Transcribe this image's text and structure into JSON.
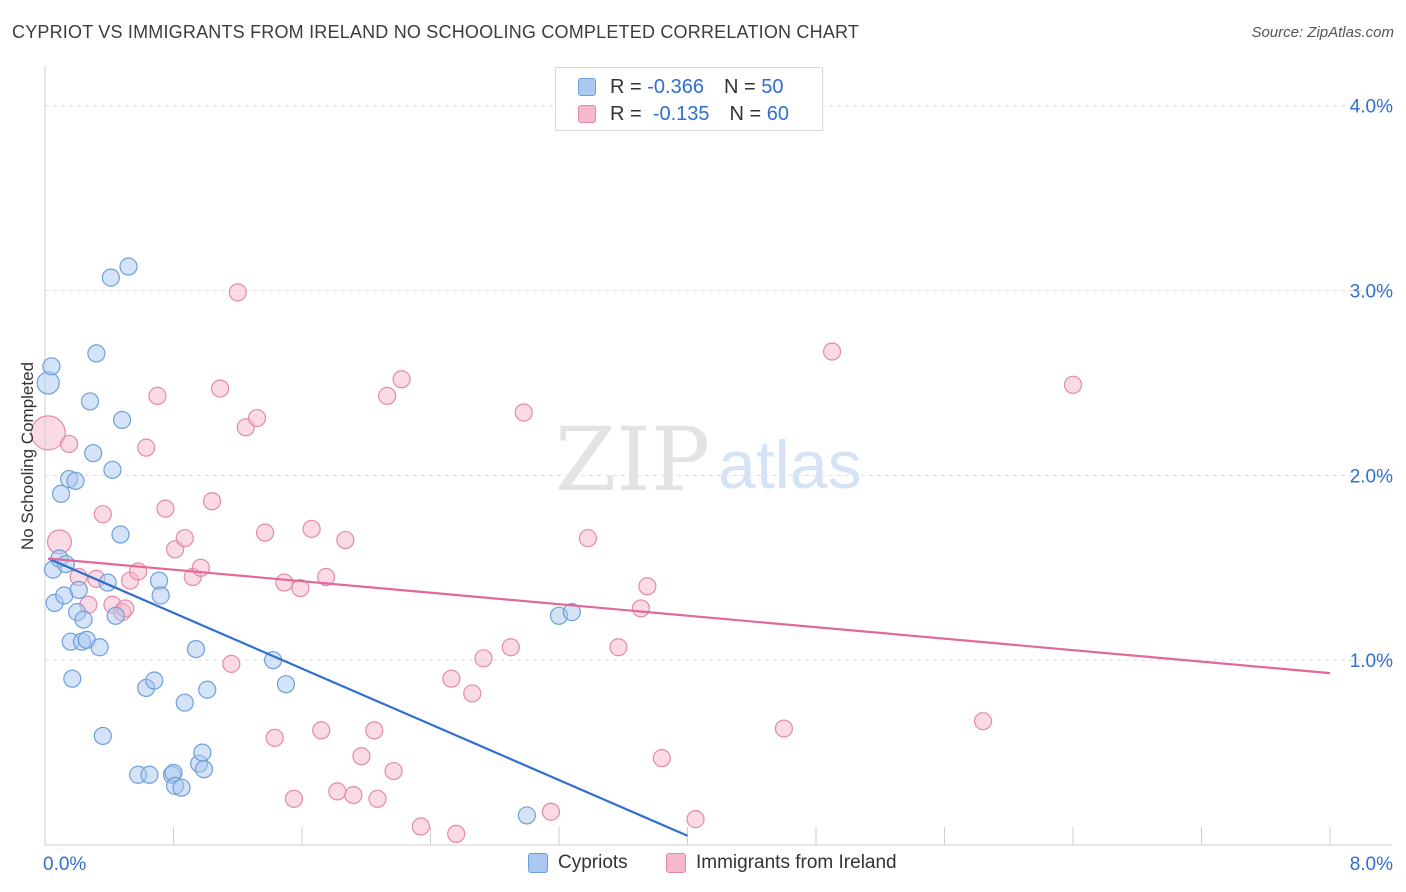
{
  "title": "CYPRIOT VS IMMIGRANTS FROM IRELAND NO SCHOOLING COMPLETED CORRELATION CHART",
  "source": "Source: ZipAtlas.com",
  "watermark": {
    "zip": "ZIP",
    "atlas": "atlas"
  },
  "colors": {
    "blue_fill": "#aac8f0",
    "blue_stroke": "#6f9fd9",
    "blue_line": "#2f6fce",
    "pink_fill": "#f6b8cc",
    "pink_stroke": "#e48aa7",
    "pink_line": "#e0699a",
    "axis_label": "#2f6fce",
    "grid": "#dddddd"
  },
  "legend": {
    "series": [
      {
        "r_label": "R =",
        "r_value": "-0.366",
        "n_label": "N =",
        "n_value": "50"
      },
      {
        "r_label": "R =",
        "r_value": "-0.135",
        "n_label": "N =",
        "n_value": "60"
      }
    ]
  },
  "bottom_legend": [
    "Cypriots",
    "Immigrants from Ireland"
  ],
  "chart_data": {
    "type": "scatter",
    "title": "CYPRIOT VS IMMIGRANTS FROM IRELAND NO SCHOOLING COMPLETED CORRELATION CHART",
    "xlabel": "",
    "ylabel": "No Schooling Completed",
    "xlim": [
      0,
      8
    ],
    "ylim": [
      0,
      4.15
    ],
    "x_tick_labels": [
      "0.0%",
      "8.0%"
    ],
    "y_ticks": [
      1,
      2,
      3,
      4
    ],
    "y_tick_labels": [
      "1.0%",
      "2.0%",
      "3.0%",
      "4.0%"
    ],
    "grid": true,
    "series": [
      {
        "name": "Cypriots",
        "r": -0.366,
        "n": 50,
        "trend": {
          "x": [
            0.02,
            4.0
          ],
          "y": [
            1.55,
            0.05
          ]
        },
        "points": [
          {
            "x": 0.02,
            "y": 2.5,
            "s": 1.3
          },
          {
            "x": 0.04,
            "y": 2.59
          },
          {
            "x": 0.05,
            "y": 1.49
          },
          {
            "x": 0.06,
            "y": 1.31
          },
          {
            "x": 0.09,
            "y": 1.55
          },
          {
            "x": 0.1,
            "y": 1.9
          },
          {
            "x": 0.12,
            "y": 1.35
          },
          {
            "x": 0.13,
            "y": 1.52
          },
          {
            "x": 0.15,
            "y": 1.98
          },
          {
            "x": 0.16,
            "y": 1.1
          },
          {
            "x": 0.17,
            "y": 0.9
          },
          {
            "x": 0.19,
            "y": 1.97
          },
          {
            "x": 0.2,
            "y": 1.26
          },
          {
            "x": 0.21,
            "y": 1.38
          },
          {
            "x": 0.23,
            "y": 1.1
          },
          {
            "x": 0.24,
            "y": 1.22
          },
          {
            "x": 0.26,
            "y": 1.11
          },
          {
            "x": 0.28,
            "y": 2.4
          },
          {
            "x": 0.3,
            "y": 2.12
          },
          {
            "x": 0.32,
            "y": 2.66
          },
          {
            "x": 0.34,
            "y": 1.07
          },
          {
            "x": 0.36,
            "y": 0.59
          },
          {
            "x": 0.39,
            "y": 1.42
          },
          {
            "x": 0.41,
            "y": 3.07
          },
          {
            "x": 0.42,
            "y": 2.03
          },
          {
            "x": 0.44,
            "y": 1.24
          },
          {
            "x": 0.47,
            "y": 1.68
          },
          {
            "x": 0.48,
            "y": 2.3
          },
          {
            "x": 0.52,
            "y": 3.13
          },
          {
            "x": 0.58,
            "y": 0.38
          },
          {
            "x": 0.63,
            "y": 0.85
          },
          {
            "x": 0.65,
            "y": 0.38
          },
          {
            "x": 0.68,
            "y": 0.89
          },
          {
            "x": 0.71,
            "y": 1.43
          },
          {
            "x": 0.72,
            "y": 1.35
          },
          {
            "x": 0.79,
            "y": 0.38
          },
          {
            "x": 0.8,
            "y": 0.39
          },
          {
            "x": 0.81,
            "y": 0.32
          },
          {
            "x": 0.85,
            "y": 0.31
          },
          {
            "x": 0.87,
            "y": 0.77
          },
          {
            "x": 0.94,
            "y": 1.06
          },
          {
            "x": 0.96,
            "y": 0.44
          },
          {
            "x": 0.98,
            "y": 0.5
          },
          {
            "x": 0.99,
            "y": 0.41
          },
          {
            "x": 1.01,
            "y": 0.84
          },
          {
            "x": 1.42,
            "y": 1.0
          },
          {
            "x": 1.5,
            "y": 0.87
          },
          {
            "x": 3.0,
            "y": 0.16
          },
          {
            "x": 3.2,
            "y": 1.24
          },
          {
            "x": 3.28,
            "y": 1.26
          }
        ]
      },
      {
        "name": "Immigrants from Ireland",
        "r": -0.135,
        "n": 60,
        "trend": {
          "x": [
            0.02,
            8.0
          ],
          "y": [
            1.55,
            0.93
          ]
        },
        "points": [
          {
            "x": 0.02,
            "y": 2.23,
            "s": 2.0
          },
          {
            "x": 0.09,
            "y": 1.64,
            "s": 1.4
          },
          {
            "x": 0.15,
            "y": 2.17
          },
          {
            "x": 0.21,
            "y": 1.45
          },
          {
            "x": 0.27,
            "y": 1.3
          },
          {
            "x": 0.32,
            "y": 1.44
          },
          {
            "x": 0.36,
            "y": 1.79
          },
          {
            "x": 0.42,
            "y": 1.3
          },
          {
            "x": 0.48,
            "y": 1.26
          },
          {
            "x": 0.5,
            "y": 1.28
          },
          {
            "x": 0.53,
            "y": 1.43
          },
          {
            "x": 0.58,
            "y": 1.48
          },
          {
            "x": 0.63,
            "y": 2.15
          },
          {
            "x": 0.7,
            "y": 2.43
          },
          {
            "x": 0.75,
            "y": 1.82
          },
          {
            "x": 0.81,
            "y": 1.6
          },
          {
            "x": 0.87,
            "y": 1.66
          },
          {
            "x": 0.92,
            "y": 1.45
          },
          {
            "x": 0.97,
            "y": 1.5
          },
          {
            "x": 1.04,
            "y": 1.86
          },
          {
            "x": 1.09,
            "y": 2.47
          },
          {
            "x": 1.16,
            "y": 0.98
          },
          {
            "x": 1.2,
            "y": 2.99
          },
          {
            "x": 1.25,
            "y": 2.26
          },
          {
            "x": 1.32,
            "y": 2.31
          },
          {
            "x": 1.37,
            "y": 1.69
          },
          {
            "x": 1.43,
            "y": 0.58
          },
          {
            "x": 1.49,
            "y": 1.42
          },
          {
            "x": 1.55,
            "y": 0.25
          },
          {
            "x": 1.59,
            "y": 1.39
          },
          {
            "x": 1.66,
            "y": 1.71
          },
          {
            "x": 1.72,
            "y": 0.62
          },
          {
            "x": 1.75,
            "y": 1.45
          },
          {
            "x": 1.82,
            "y": 0.29
          },
          {
            "x": 1.87,
            "y": 1.65
          },
          {
            "x": 1.92,
            "y": 0.27
          },
          {
            "x": 1.97,
            "y": 0.48
          },
          {
            "x": 2.05,
            "y": 0.62
          },
          {
            "x": 2.07,
            "y": 0.25
          },
          {
            "x": 2.13,
            "y": 2.43
          },
          {
            "x": 2.17,
            "y": 0.4
          },
          {
            "x": 2.22,
            "y": 2.52
          },
          {
            "x": 2.34,
            "y": 0.1
          },
          {
            "x": 2.53,
            "y": 0.9
          },
          {
            "x": 2.56,
            "y": 0.06
          },
          {
            "x": 2.66,
            "y": 0.82
          },
          {
            "x": 2.73,
            "y": 1.01
          },
          {
            "x": 2.9,
            "y": 1.07
          },
          {
            "x": 2.98,
            "y": 2.34
          },
          {
            "x": 3.15,
            "y": 0.18
          },
          {
            "x": 3.38,
            "y": 1.66
          },
          {
            "x": 3.57,
            "y": 1.07
          },
          {
            "x": 3.71,
            "y": 1.28
          },
          {
            "x": 3.75,
            "y": 1.4
          },
          {
            "x": 3.84,
            "y": 0.47
          },
          {
            "x": 4.05,
            "y": 0.14
          },
          {
            "x": 4.6,
            "y": 0.63
          },
          {
            "x": 4.9,
            "y": 2.67
          },
          {
            "x": 5.84,
            "y": 0.67
          },
          {
            "x": 6.4,
            "y": 2.49
          }
        ]
      }
    ]
  }
}
